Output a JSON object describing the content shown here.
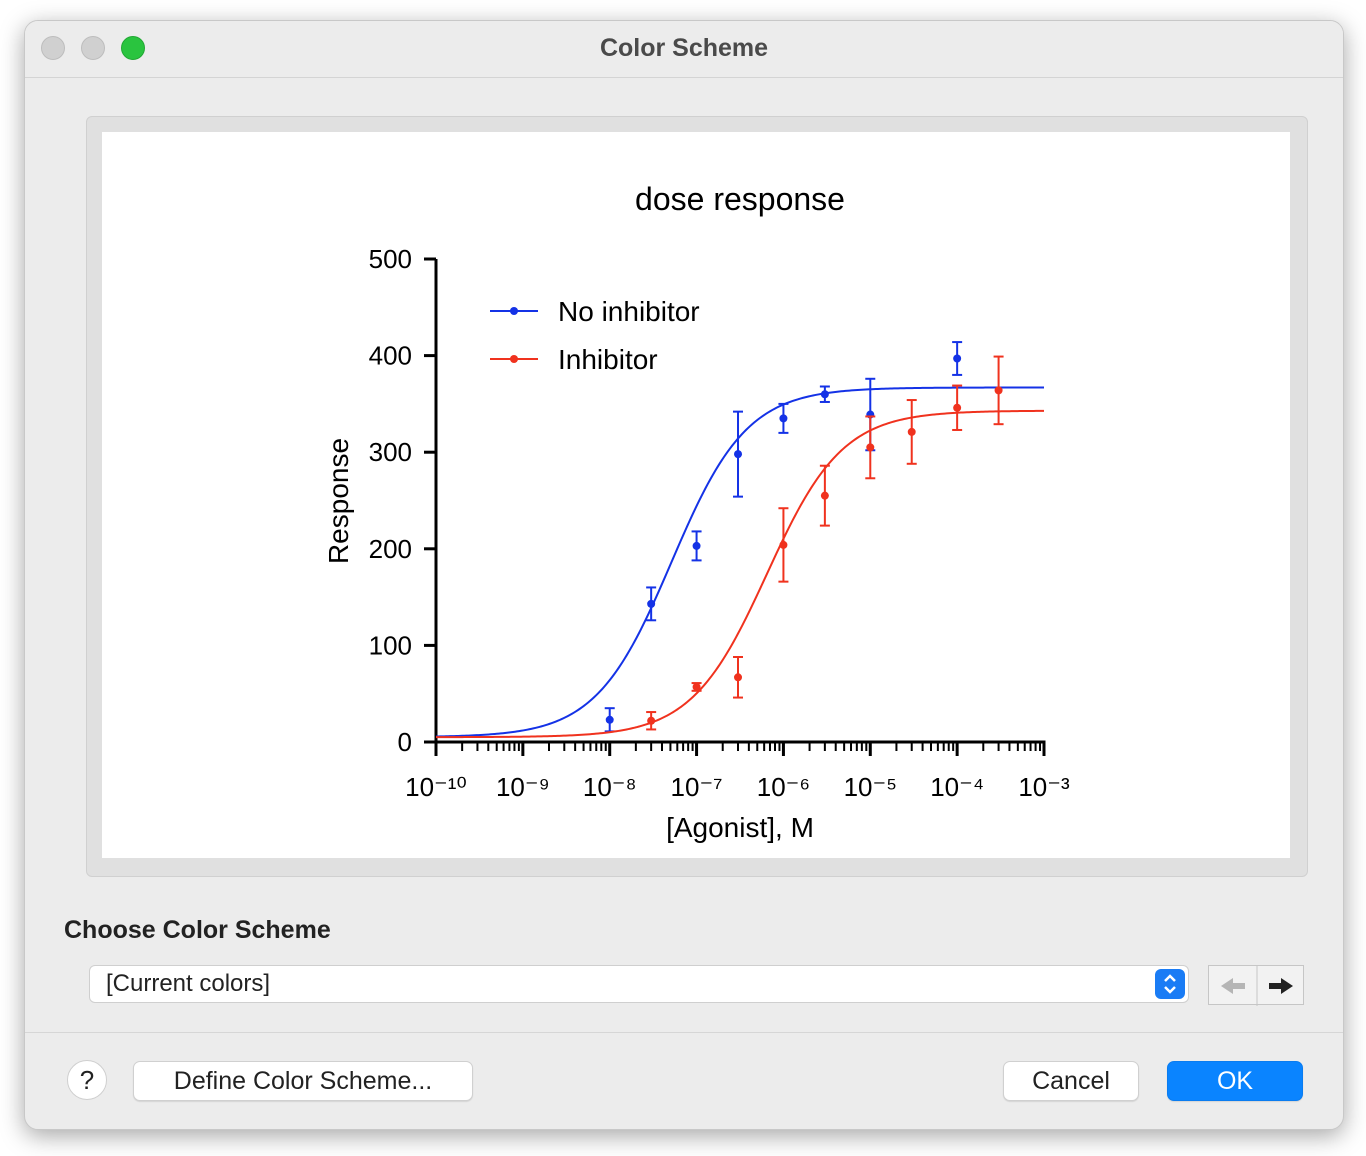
{
  "window": {
    "title": "Color Scheme"
  },
  "chart_data": {
    "type": "scatter",
    "title": "dose response",
    "x_label": "[Agonist], M",
    "y_label": "Response",
    "xscale": "log",
    "xlim": [
      1e-10,
      0.001
    ],
    "xticks": [
      {
        "value": 1e-10,
        "label": "10⁻¹⁰"
      },
      {
        "value": 1e-09,
        "label": "10⁻⁹"
      },
      {
        "value": 1e-08,
        "label": "10⁻⁸"
      },
      {
        "value": 1e-07,
        "label": "10⁻⁷"
      },
      {
        "value": 1e-06,
        "label": "10⁻⁶"
      },
      {
        "value": 1e-05,
        "label": "10⁻⁵"
      },
      {
        "value": 0.0001,
        "label": "10⁻⁴"
      },
      {
        "value": 0.001,
        "label": "10⁻³"
      }
    ],
    "minor_ticks": true,
    "ylim": [
      0,
      500
    ],
    "yticks": [
      0,
      100,
      200,
      300,
      400,
      500
    ],
    "legend": "top-left",
    "series": [
      {
        "name": "No inhibitor",
        "color": "#1432e6",
        "x": [
          1e-08,
          3e-08,
          1e-07,
          3e-07,
          1e-06,
          3e-06,
          1e-05,
          0.0001
        ],
        "values": [
          23,
          143,
          203,
          298,
          335,
          360,
          339,
          397
        ],
        "errors": [
          12,
          17,
          15,
          44,
          15,
          8,
          37,
          17
        ],
        "fit": {
          "bottom": 5,
          "top": 367,
          "logec50": -7.29,
          "hill": 1
        }
      },
      {
        "name": "Inhibitor",
        "color": "#f0321e",
        "x": [
          3e-08,
          1e-07,
          3e-07,
          1e-06,
          3e-06,
          1e-05,
          3e-05,
          0.0001,
          0.0003
        ],
        "values": [
          22,
          57,
          67,
          204,
          255,
          305,
          321,
          346,
          364
        ],
        "errors": [
          9,
          4,
          21,
          38,
          31,
          32,
          33,
          23,
          35
        ],
        "fit": {
          "bottom": 5,
          "top": 343,
          "logec50": -6.19,
          "hill": 1
        }
      }
    ]
  },
  "scheme_label": "Choose Color Scheme",
  "scheme_select": "[Current colors]",
  "buttons": {
    "help": "?",
    "define": "Define Color Scheme...",
    "cancel": "Cancel",
    "ok": "OK"
  }
}
